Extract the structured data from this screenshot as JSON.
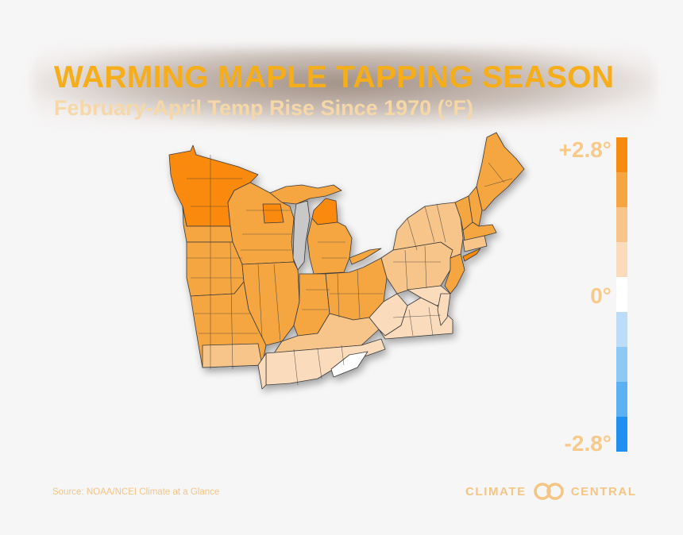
{
  "header": {
    "title": "WARMING MAPLE TAPPING SEASON",
    "subtitle": "February-April Temp Rise Since 1970 (°F)"
  },
  "legend": {
    "top_label": "+2.8°",
    "mid_label": "0°",
    "bottom_label": "-2.8°",
    "scale": [
      {
        "value": 2.8,
        "color": "#f98a10"
      },
      {
        "value": 2.1,
        "color": "#f6a641"
      },
      {
        "value": 1.4,
        "color": "#f7c489"
      },
      {
        "value": 0.7,
        "color": "#fadbbc"
      },
      {
        "value": 0,
        "color": "#ffffff"
      },
      {
        "value": -0.7,
        "color": "#bcdcf7"
      },
      {
        "value": -1.4,
        "color": "#8ec8f4"
      },
      {
        "value": -2.1,
        "color": "#5cb1f2"
      },
      {
        "value": -2.8,
        "color": "#1f8ff0"
      }
    ]
  },
  "map": {
    "region": "Northeast and Midwest United States climate divisions",
    "fill_colors": {
      "strongest": "#f98a10",
      "strong": "#f6a641",
      "moderate": "#f7c489",
      "mild": "#fadbbc",
      "neutral": "#ffffff",
      "lake": "#c8c8c8",
      "border": "#3a3a3a"
    }
  },
  "footer": {
    "source": "Source: NOAA/NCEI Climate at a Glance",
    "brand_left": "CLIMATE",
    "brand_right": "CENTRAL"
  }
}
